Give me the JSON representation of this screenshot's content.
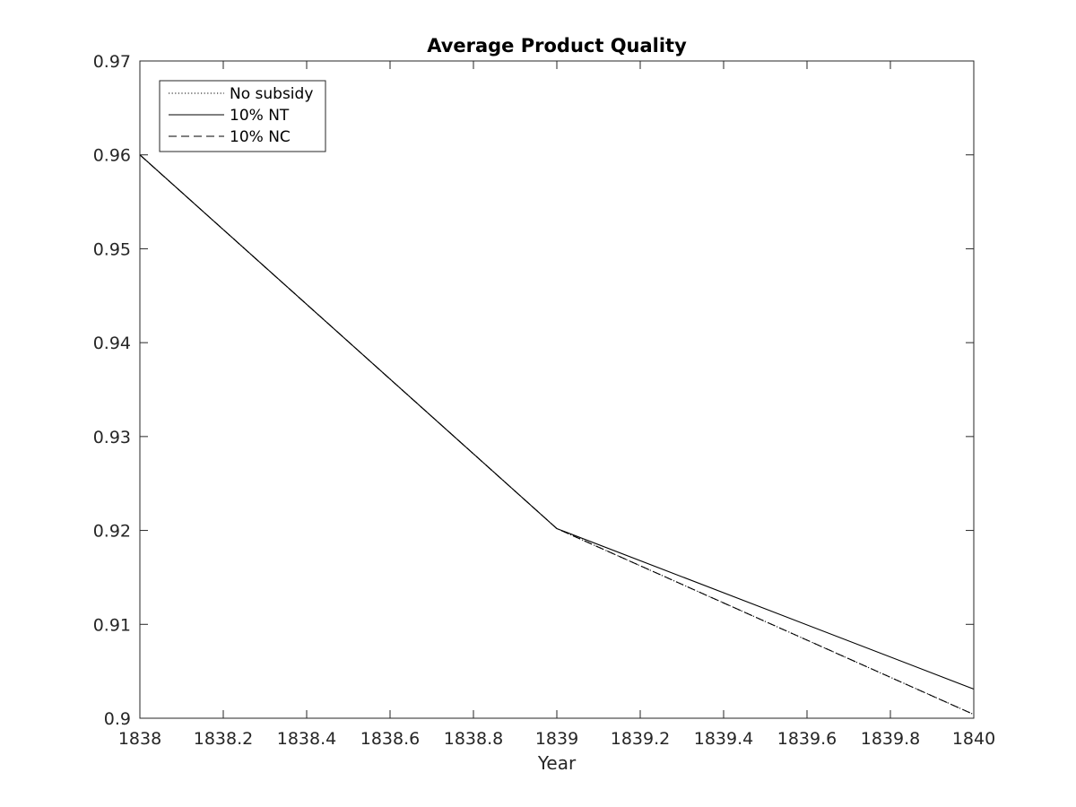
{
  "chart_data": {
    "type": "line",
    "title": "Average Product Quality",
    "xlabel": "Year",
    "ylabel": "",
    "xlim": [
      1838,
      1840
    ],
    "ylim": [
      0.9,
      0.97
    ],
    "xticks": [
      1838,
      1838.2,
      1838.4,
      1838.6,
      1838.8,
      1839,
      1839.2,
      1839.4,
      1839.6,
      1839.8,
      1840
    ],
    "xtick_labels": [
      "1838",
      "1838.2",
      "1838.4",
      "1838.6",
      "1838.8",
      "1839",
      "1839.2",
      "1839.4",
      "1839.6",
      "1839.8",
      "1840"
    ],
    "yticks": [
      0.9,
      0.91,
      0.92,
      0.93,
      0.94,
      0.95,
      0.96,
      0.97
    ],
    "ytick_labels": [
      "0.9",
      "0.91",
      "0.92",
      "0.93",
      "0.94",
      "0.95",
      "0.96",
      "0.97"
    ],
    "grid": false,
    "legend_position": "top-left",
    "series": [
      {
        "name": "No subsidy",
        "style": "dotted",
        "color": "#000000",
        "x": [
          1838,
          1839,
          1840
        ],
        "y": [
          0.96,
          0.9202,
          0.9004
        ]
      },
      {
        "name": "10% NT",
        "style": "solid",
        "color": "#000000",
        "x": [
          1838,
          1839,
          1840
        ],
        "y": [
          0.96,
          0.9202,
          0.9031
        ]
      },
      {
        "name": "10% NC",
        "style": "dashed",
        "color": "#000000",
        "x": [
          1838,
          1839,
          1840
        ],
        "y": [
          0.96,
          0.9202,
          0.9004
        ]
      }
    ]
  }
}
